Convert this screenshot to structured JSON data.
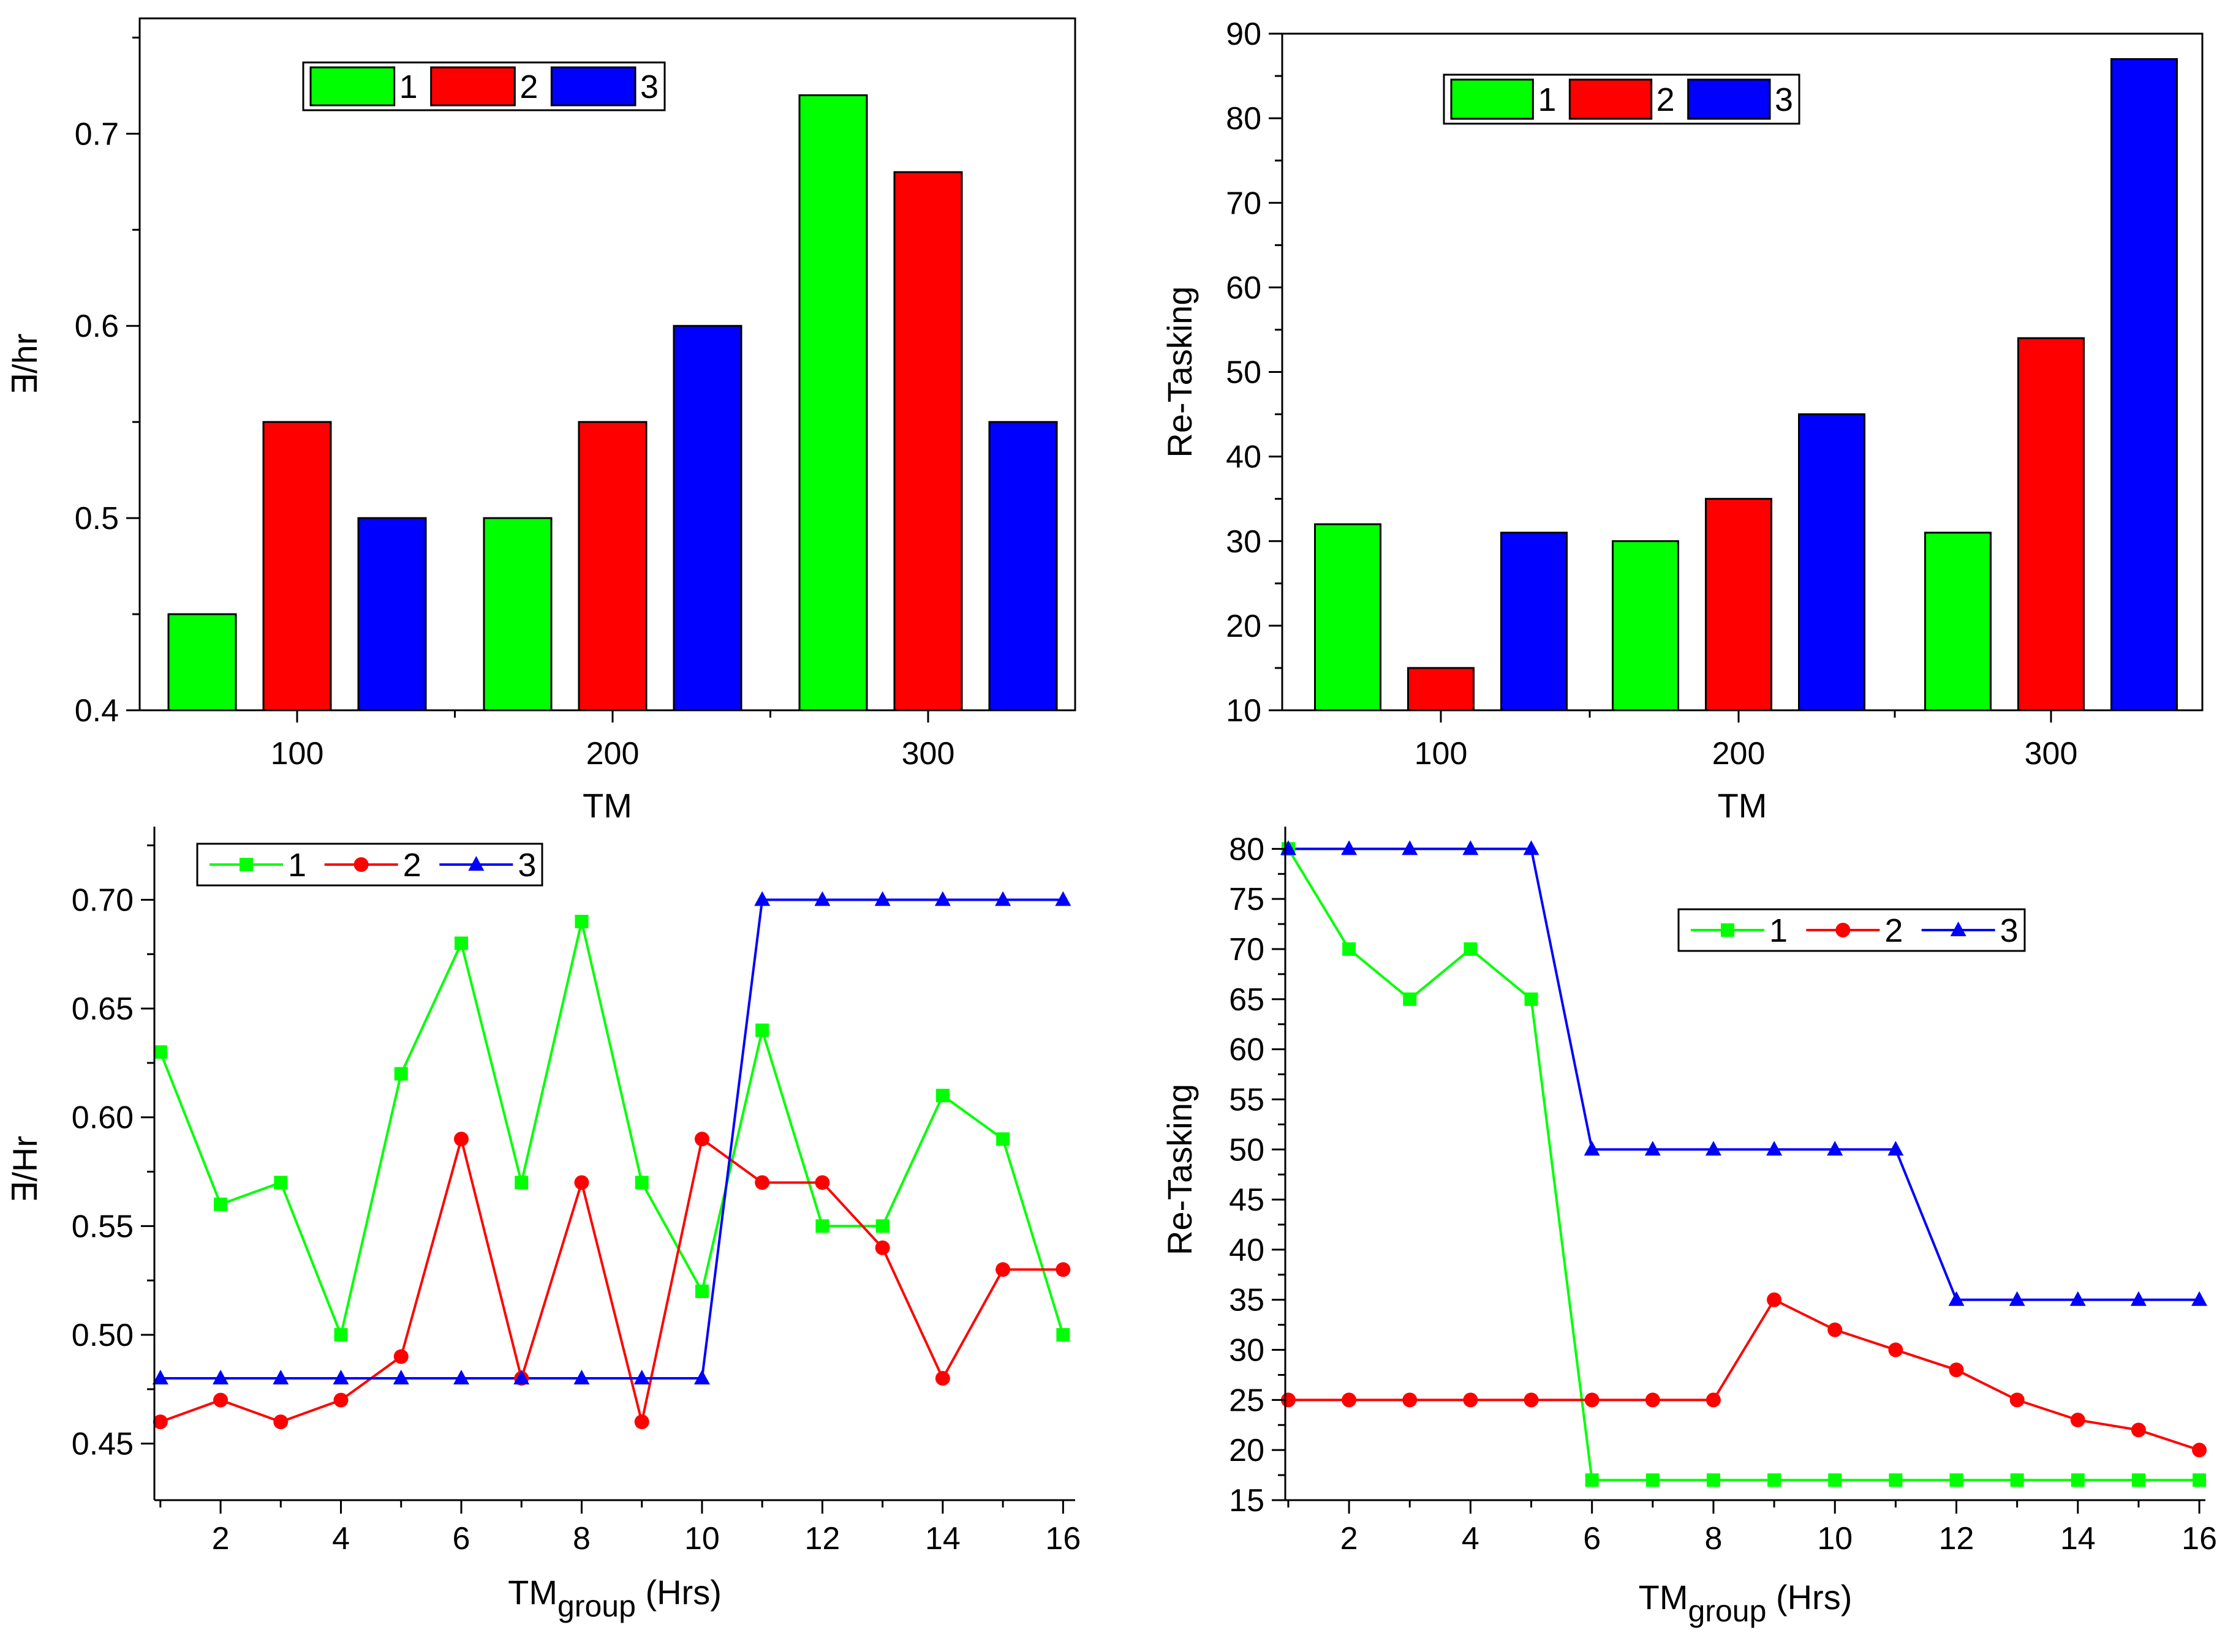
{
  "figure": {
    "description": "Four-panel figure comparing three groups (1, 2, 3)"
  },
  "colors": {
    "series_1": "#00ff00",
    "series_2": "#ff0000",
    "series_3": "#0000ff",
    "bar_1": "#00ff00",
    "bar_2": "#ff0000",
    "bar_3": "#0000ff",
    "axis": "#000000"
  },
  "chart_data": [
    {
      "id": "top-left",
      "type": "bar",
      "title": "",
      "xlabel": "TM",
      "ylabel": "∃/hr",
      "categories": [
        "100",
        "200",
        "300"
      ],
      "series": [
        {
          "name": "1",
          "values": [
            0.45,
            0.5,
            0.72
          ]
        },
        {
          "name": "2",
          "values": [
            0.55,
            0.55,
            0.68
          ]
        },
        {
          "name": "3",
          "values": [
            0.5,
            0.6,
            0.55
          ]
        }
      ],
      "ylim": [
        0.4,
        0.76
      ],
      "yticks": [
        0.4,
        0.5,
        0.6,
        0.7
      ],
      "ytick_labels": [
        "0.4",
        "0.5",
        "0.6",
        "0.7"
      ],
      "legend": {
        "position": "top-left",
        "labels": [
          "1",
          "2",
          "3"
        ]
      },
      "grid": false
    },
    {
      "id": "top-right",
      "type": "bar",
      "title": "",
      "xlabel": "TM",
      "ylabel": "Re-Tasking",
      "categories": [
        "100",
        "200",
        "300"
      ],
      "series": [
        {
          "name": "1",
          "values": [
            32,
            30,
            31
          ]
        },
        {
          "name": "2",
          "values": [
            15,
            35,
            54
          ]
        },
        {
          "name": "3",
          "values": [
            31,
            45,
            87
          ]
        }
      ],
      "ylim": [
        10,
        90
      ],
      "yticks": [
        10,
        20,
        30,
        40,
        50,
        60,
        70,
        80,
        90
      ],
      "ytick_labels": [
        "10",
        "20",
        "30",
        "40",
        "50",
        "60",
        "70",
        "80",
        "90"
      ],
      "legend": {
        "position": "top-left",
        "labels": [
          "1",
          "2",
          "3"
        ]
      },
      "grid": false
    },
    {
      "id": "bottom-left",
      "type": "line",
      "title": "",
      "xlabel_main": "TM",
      "xlabel_sub": "group",
      "xlabel_suffix": " (Hrs)",
      "ylabel": "∃/Hr",
      "x": [
        1,
        2,
        3,
        4,
        5,
        6,
        7,
        8,
        9,
        10,
        11,
        12,
        13,
        14,
        15,
        16
      ],
      "series": [
        {
          "name": "1",
          "marker": "square",
          "values": [
            0.63,
            0.56,
            0.57,
            0.5,
            0.62,
            0.68,
            0.57,
            0.69,
            0.57,
            0.52,
            0.64,
            0.55,
            0.55,
            0.61,
            0.59,
            0.5
          ]
        },
        {
          "name": "2",
          "marker": "circle",
          "values": [
            0.46,
            0.47,
            0.46,
            0.47,
            0.49,
            0.59,
            0.48,
            0.57,
            0.46,
            0.59,
            0.57,
            0.57,
            0.54,
            0.48,
            0.53,
            0.53
          ]
        },
        {
          "name": "3",
          "marker": "triangle",
          "values": [
            0.48,
            0.48,
            0.48,
            0.48,
            0.48,
            0.48,
            0.48,
            0.48,
            0.48,
            0.48,
            0.7,
            0.7,
            0.7,
            0.7,
            0.7,
            0.7
          ]
        }
      ],
      "xlim": [
        0.9,
        16.2
      ],
      "ylim": [
        0.424,
        0.728
      ],
      "xticks": [
        2,
        4,
        6,
        8,
        10,
        12,
        14,
        16
      ],
      "xtick_labels": [
        "2",
        "4",
        "6",
        "8",
        "10",
        "12",
        "14",
        "16"
      ],
      "yticks": [
        0.45,
        0.5,
        0.55,
        0.6,
        0.65,
        0.7
      ],
      "ytick_labels": [
        "0.45",
        "0.50",
        "0.55",
        "0.60",
        "0.65",
        "0.70"
      ],
      "legend": {
        "position": "top-left",
        "labels": [
          "1",
          "2",
          "3"
        ]
      },
      "grid": false
    },
    {
      "id": "bottom-right",
      "type": "line",
      "title": "",
      "xlabel_main": "TM",
      "xlabel_sub": "group",
      "xlabel_suffix": " (Hrs)",
      "ylabel": "Re-Tasking",
      "x": [
        1,
        2,
        3,
        4,
        5,
        6,
        7,
        8,
        9,
        10,
        11,
        12,
        13,
        14,
        15,
        16
      ],
      "series": [
        {
          "name": "1",
          "marker": "square",
          "values": [
            80,
            70,
            65,
            70,
            65,
            17,
            17,
            17,
            17,
            17,
            17,
            17,
            17,
            17,
            17,
            17
          ]
        },
        {
          "name": "2",
          "marker": "circle",
          "values": [
            25,
            25,
            25,
            25,
            25,
            25,
            25,
            25,
            35,
            32,
            30,
            28,
            25,
            23,
            22,
            20
          ]
        },
        {
          "name": "3",
          "marker": "triangle",
          "values": [
            80,
            80,
            80,
            80,
            80,
            50,
            50,
            50,
            50,
            50,
            50,
            35,
            35,
            35,
            35,
            35
          ]
        }
      ],
      "xlim": [
        0.95,
        16.1
      ],
      "ylim": [
        15,
        81
      ],
      "xticks": [
        2,
        4,
        6,
        8,
        10,
        12,
        14,
        16
      ],
      "xtick_labels": [
        "2",
        "4",
        "6",
        "8",
        "10",
        "12",
        "14",
        "16"
      ],
      "yticks": [
        15,
        20,
        25,
        30,
        35,
        40,
        45,
        50,
        55,
        60,
        65,
        70,
        75,
        80
      ],
      "ytick_labels": [
        "15",
        "20",
        "25",
        "30",
        "35",
        "40",
        "45",
        "50",
        "55",
        "60",
        "65",
        "70",
        "75",
        "80"
      ],
      "legend": {
        "position": "top-right",
        "labels": [
          "1",
          "2",
          "3"
        ]
      },
      "grid": false
    }
  ]
}
